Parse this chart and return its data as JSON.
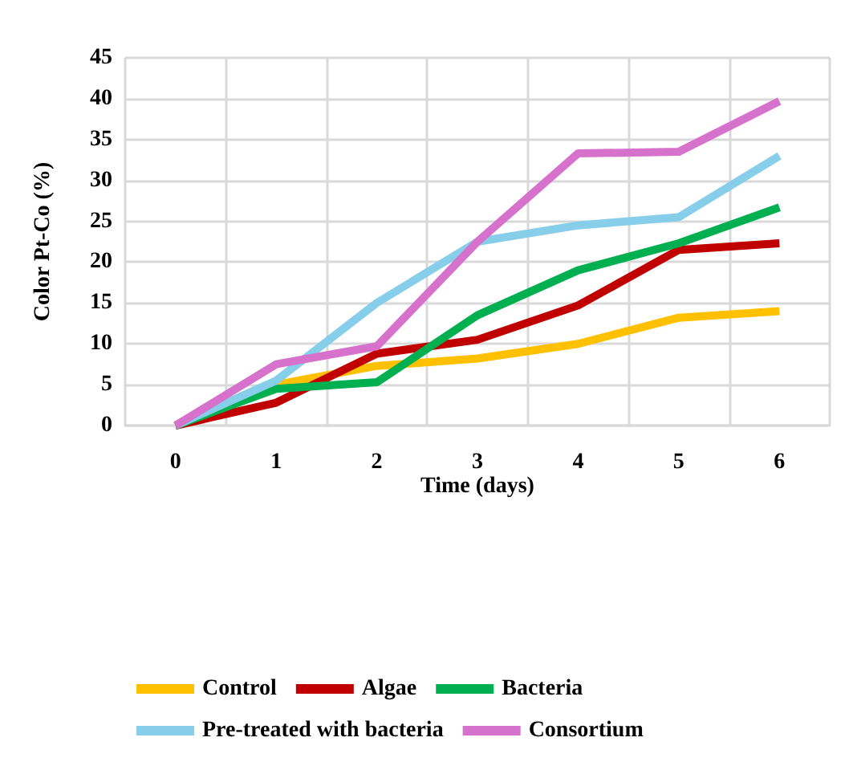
{
  "chart_data": {
    "type": "line",
    "xlabel": "Time (days)",
    "ylabel": "Color Pt-Co (%)",
    "categories": [
      "0",
      "1",
      "2",
      "3",
      "4",
      "5",
      "6"
    ],
    "series": [
      {
        "name": "Control",
        "color": "#ffc000",
        "values": [
          0,
          5,
          7.3,
          8.2,
          10,
          13.2,
          14
        ]
      },
      {
        "name": "Algae",
        "color": "#c00000",
        "values": [
          0,
          2.8,
          8.8,
          10.5,
          14.7,
          21.5,
          22.3
        ]
      },
      {
        "name": "Bacteria",
        "color": "#00b050",
        "values": [
          0,
          4.5,
          5.3,
          13.5,
          19,
          22.3,
          26.7
        ]
      },
      {
        "name": "Pre-treated with bacteria",
        "color": "#87ceeb",
        "values": [
          0,
          5.5,
          15,
          22.5,
          24.5,
          25.5,
          33
        ]
      },
      {
        "name": "Consortium",
        "color": "#d672cc",
        "values": [
          0,
          7.5,
          9.7,
          22.5,
          33.3,
          33.5,
          39.7
        ]
      }
    ],
    "ylim": [
      0,
      45
    ],
    "yticks": [
      0,
      5,
      10,
      15,
      20,
      25,
      30,
      35,
      40,
      45
    ],
    "grid": true,
    "legend": "bottom",
    "marker": "none",
    "line_style": "solid"
  }
}
